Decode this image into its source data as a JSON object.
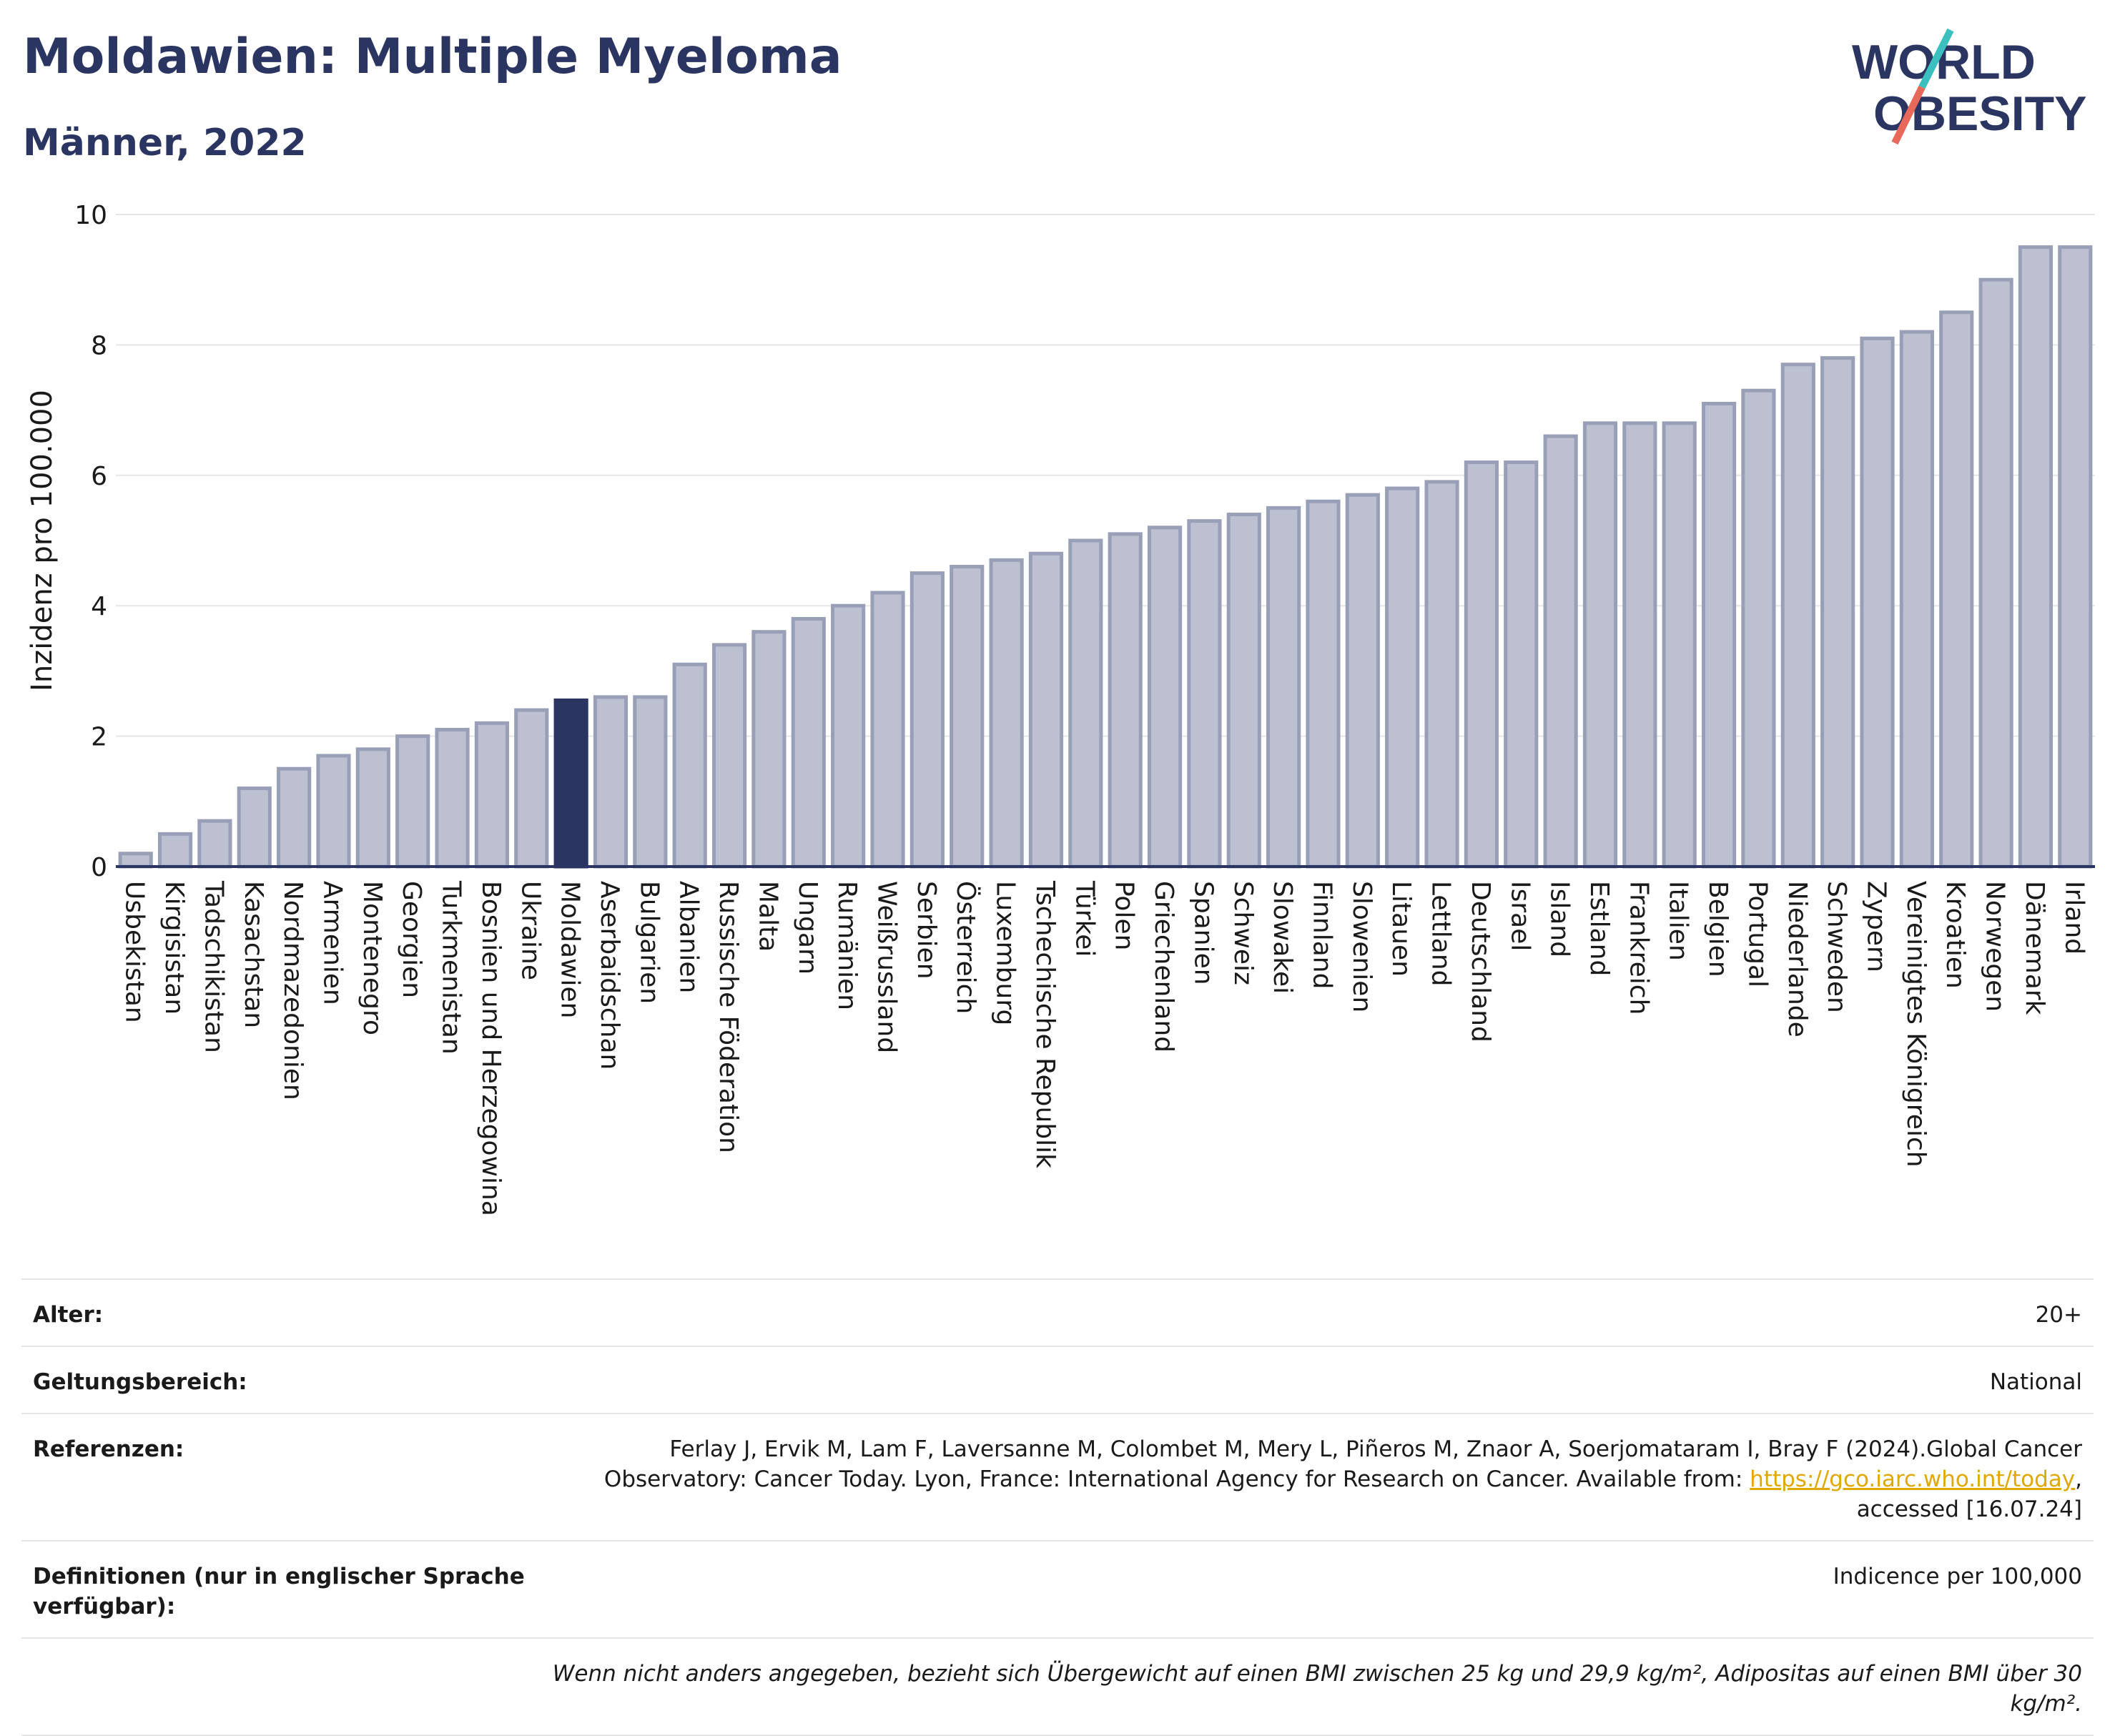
{
  "header": {
    "title": "Moldawien: Multiple Myeloma",
    "subtitle": "Männer, 2022"
  },
  "logo": {
    "line1": "WORLD",
    "line2": "OBESITY"
  },
  "colors": {
    "bar": "#bcc0d0",
    "bar_stroke": "#9a9fb8",
    "highlight": "#2b3561",
    "axis": "#2b3561",
    "grid": "#e6e6e6"
  },
  "chart_data": {
    "type": "bar",
    "ylabel": "Inzidenz pro 100.000",
    "ylim": [
      0,
      10
    ],
    "yticks": [
      0,
      2,
      4,
      6,
      8,
      10
    ],
    "grid": true,
    "highlight": "Moldawien",
    "categories": [
      "Usbekistan",
      "Kirgisistan",
      "Tadschikistan",
      "Kasachstan",
      "Nordmazedonien",
      "Armenien",
      "Montenegro",
      "Georgien",
      "Turkmenistan",
      "Bosnien und Herzegowina",
      "Ukraine",
      "Moldawien",
      "Aserbaidschan",
      "Bulgarien",
      "Albanien",
      "Russische Föderation",
      "Malta",
      "Ungarn",
      "Rumänien",
      "Weißrussland",
      "Serbien",
      "Österreich",
      "Luxemburg",
      "Tschechische Republik",
      "Türkei",
      "Polen",
      "Griechenland",
      "Spanien",
      "Schweiz",
      "Slowakei",
      "Finnland",
      "Slowenien",
      "Litauen",
      "Lettland",
      "Deutschland",
      "Israel",
      "Island",
      "Estland",
      "Frankreich",
      "Italien",
      "Belgien",
      "Portugal",
      "Niederlande",
      "Schweden",
      "Zypern",
      "Vereinigtes Königreich",
      "Kroatien",
      "Norwegen",
      "Dänemark",
      "Irland"
    ],
    "values": [
      0.2,
      0.5,
      0.7,
      1.2,
      1.5,
      1.7,
      1.8,
      2.0,
      2.1,
      2.2,
      2.4,
      2.55,
      2.6,
      2.6,
      3.1,
      3.4,
      3.6,
      3.8,
      4.0,
      4.2,
      4.5,
      4.6,
      4.7,
      4.8,
      5.0,
      5.1,
      5.2,
      5.3,
      5.4,
      5.5,
      5.6,
      5.7,
      5.8,
      5.9,
      6.2,
      6.2,
      6.6,
      6.8,
      6.8,
      6.8,
      7.1,
      7.3,
      7.7,
      7.8,
      8.1,
      8.2,
      8.5,
      9.0,
      9.5,
      9.5
    ]
  },
  "meta": {
    "alter_label": "Alter:",
    "alter_value": "20+",
    "geltung_label": "Geltungsbereich:",
    "geltung_value": "National",
    "ref_label": "Referenzen:",
    "ref_text_1": "Ferlay J, Ervik M, Lam F, Laversanne M, Colombet M, Mery L, Piñeros M, Znaor A, Soerjomataram I, Bray F (2024).Global Cancer Observatory: Cancer Today. Lyon, France: International Agency for Research on Cancer. Available from: ",
    "ref_link": "https://gco.iarc.who.int/today",
    "ref_text_2": ", accessed [16.07.24]",
    "def_label": "Definitionen (nur in englischer Sprache verfügbar):",
    "def_value": "Indicence per 100,000",
    "note": "Wenn nicht anders angegeben, bezieht sich Übergewicht auf einen BMI zwischen 25 kg und 29,9 kg/m², Adipositas auf einen BMI über 30 kg/m²."
  }
}
